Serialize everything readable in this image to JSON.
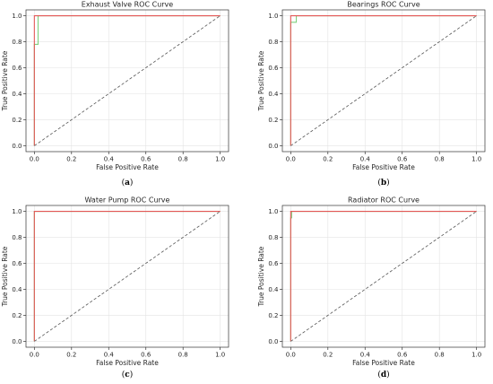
{
  "chart_data": [
    {
      "type": "line",
      "caption_label": "a",
      "title": "Exhaust Valve ROC Curve",
      "xlabel": "False Positive Rate",
      "ylabel": "True Positive Rate",
      "xlim": [
        0,
        1
      ],
      "ylim": [
        0,
        1
      ],
      "xticks": [
        "0.0",
        "0.2",
        "0.4",
        "0.6",
        "0.8",
        "1.0"
      ],
      "yticks": [
        "0.0",
        "0.2",
        "0.4",
        "0.6",
        "0.8",
        "1.0"
      ],
      "grid": true,
      "series": [
        {
          "color": "#7fd17f",
          "x": [
            0.0,
            0.0,
            0.02,
            0.02,
            1.0
          ],
          "y": [
            0.0,
            0.78,
            0.78,
            1.0,
            1.0
          ]
        },
        {
          "color": "#e45757",
          "x": [
            0.0,
            0.0,
            1.0
          ],
          "y": [
            0.0,
            1.0,
            1.0
          ]
        },
        {
          "color": "#555555",
          "dashed": true,
          "x": [
            0.0,
            1.0
          ],
          "y": [
            0.0,
            1.0
          ]
        }
      ]
    },
    {
      "type": "line",
      "caption_label": "b",
      "title": "Bearings ROC Curve",
      "xlabel": "False Positive Rate",
      "ylabel": "True Positive Rate",
      "xlim": [
        0,
        1
      ],
      "ylim": [
        0,
        1
      ],
      "xticks": [
        "0.0",
        "0.2",
        "0.4",
        "0.6",
        "0.8",
        "1.0"
      ],
      "yticks": [
        "0.0",
        "0.2",
        "0.4",
        "0.6",
        "0.8",
        "1.0"
      ],
      "grid": true,
      "series": [
        {
          "color": "#7fd17f",
          "x": [
            0.0,
            0.0,
            0.03,
            0.03,
            1.0
          ],
          "y": [
            0.0,
            0.95,
            0.95,
            1.0,
            1.0
          ]
        },
        {
          "color": "#e45757",
          "x": [
            0.0,
            0.0,
            1.0
          ],
          "y": [
            0.0,
            1.0,
            1.0
          ]
        },
        {
          "color": "#555555",
          "dashed": true,
          "x": [
            0.0,
            1.0
          ],
          "y": [
            0.0,
            1.0
          ]
        }
      ]
    },
    {
      "type": "line",
      "caption_label": "c",
      "title": "Water Pump ROC Curve",
      "xlabel": "False Positive Rate",
      "ylabel": "True Positive Rate",
      "xlim": [
        0,
        1
      ],
      "ylim": [
        0,
        1
      ],
      "xticks": [
        "0.0",
        "0.2",
        "0.4",
        "0.6",
        "0.8",
        "1.0"
      ],
      "yticks": [
        "0.0",
        "0.2",
        "0.4",
        "0.6",
        "0.8",
        "1.0"
      ],
      "grid": true,
      "series": [
        {
          "color": "#7fd17f",
          "x": [
            0.0,
            0.0,
            1.0
          ],
          "y": [
            0.0,
            1.0,
            1.0
          ]
        },
        {
          "color": "#e45757",
          "x": [
            0.0,
            0.0,
            1.0
          ],
          "y": [
            0.0,
            1.0,
            1.0
          ]
        },
        {
          "color": "#555555",
          "dashed": true,
          "x": [
            0.0,
            1.0
          ],
          "y": [
            0.0,
            1.0
          ]
        }
      ]
    },
    {
      "type": "line",
      "caption_label": "d",
      "title": "Radiator ROC Curve",
      "xlabel": "False Positive Rate",
      "ylabel": "True Positive Rate",
      "xlim": [
        0,
        1
      ],
      "ylim": [
        0,
        1
      ],
      "xticks": [
        "0.0",
        "0.2",
        "0.4",
        "0.6",
        "0.8",
        "1.0"
      ],
      "yticks": [
        "0.0",
        "0.2",
        "0.4",
        "0.6",
        "0.8",
        "1.0"
      ],
      "grid": true,
      "series": [
        {
          "color": "#7fd17f",
          "x": [
            0.0,
            0.0,
            0.005,
            0.005,
            1.0
          ],
          "y": [
            0.0,
            0.95,
            0.95,
            1.0,
            1.0
          ]
        },
        {
          "color": "#e45757",
          "x": [
            0.0,
            0.0,
            1.0
          ],
          "y": [
            0.0,
            1.0,
            1.0
          ]
        },
        {
          "color": "#555555",
          "dashed": true,
          "x": [
            0.0,
            1.0
          ],
          "y": [
            0.0,
            1.0
          ]
        }
      ]
    }
  ]
}
